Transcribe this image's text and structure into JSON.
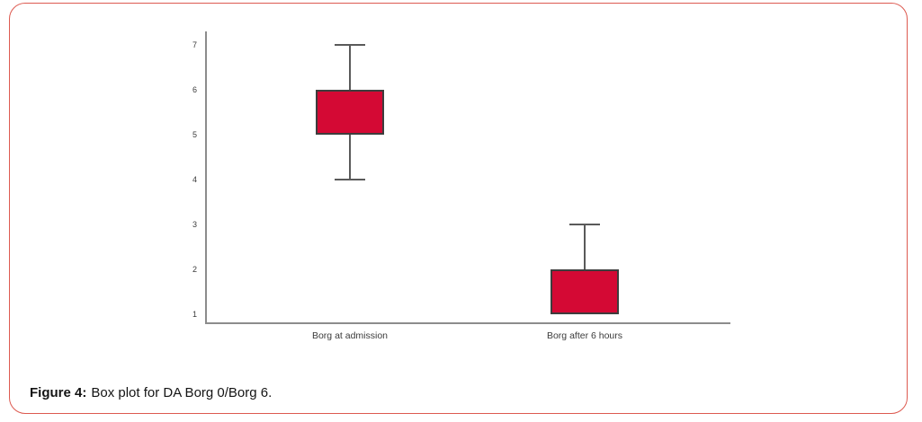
{
  "figure": {
    "caption_label": "Figure 4:",
    "caption_text": "Box plot for DA Borg 0/Borg 6.",
    "border_color": "#dd5a50",
    "background": "#ffffff"
  },
  "chart_data": {
    "type": "boxplot",
    "title": "",
    "xlabel": "",
    "ylabel": "",
    "categories": [
      "Borg at admission",
      "Borg after 6 hours"
    ],
    "series": [
      {
        "name": "Borg at admission",
        "whisker_low": 4,
        "q1": 5,
        "median": null,
        "q3": 6,
        "whisker_high": 7
      },
      {
        "name": "Borg after 6 hours",
        "whisker_low": 1,
        "q1": 1,
        "median": null,
        "q3": 2,
        "whisker_high": 3
      }
    ],
    "yticks": [
      7,
      6,
      5,
      4,
      3,
      2,
      1
    ],
    "ylim": [
      1,
      7
    ],
    "grid": false,
    "legend": false,
    "colors": {
      "box_fill": "#d40934",
      "box_border": "#3d3d3d",
      "whisker": "#5a5a5a",
      "axis": "#8c8c8c",
      "tick_text": "#3b3b3b"
    }
  }
}
